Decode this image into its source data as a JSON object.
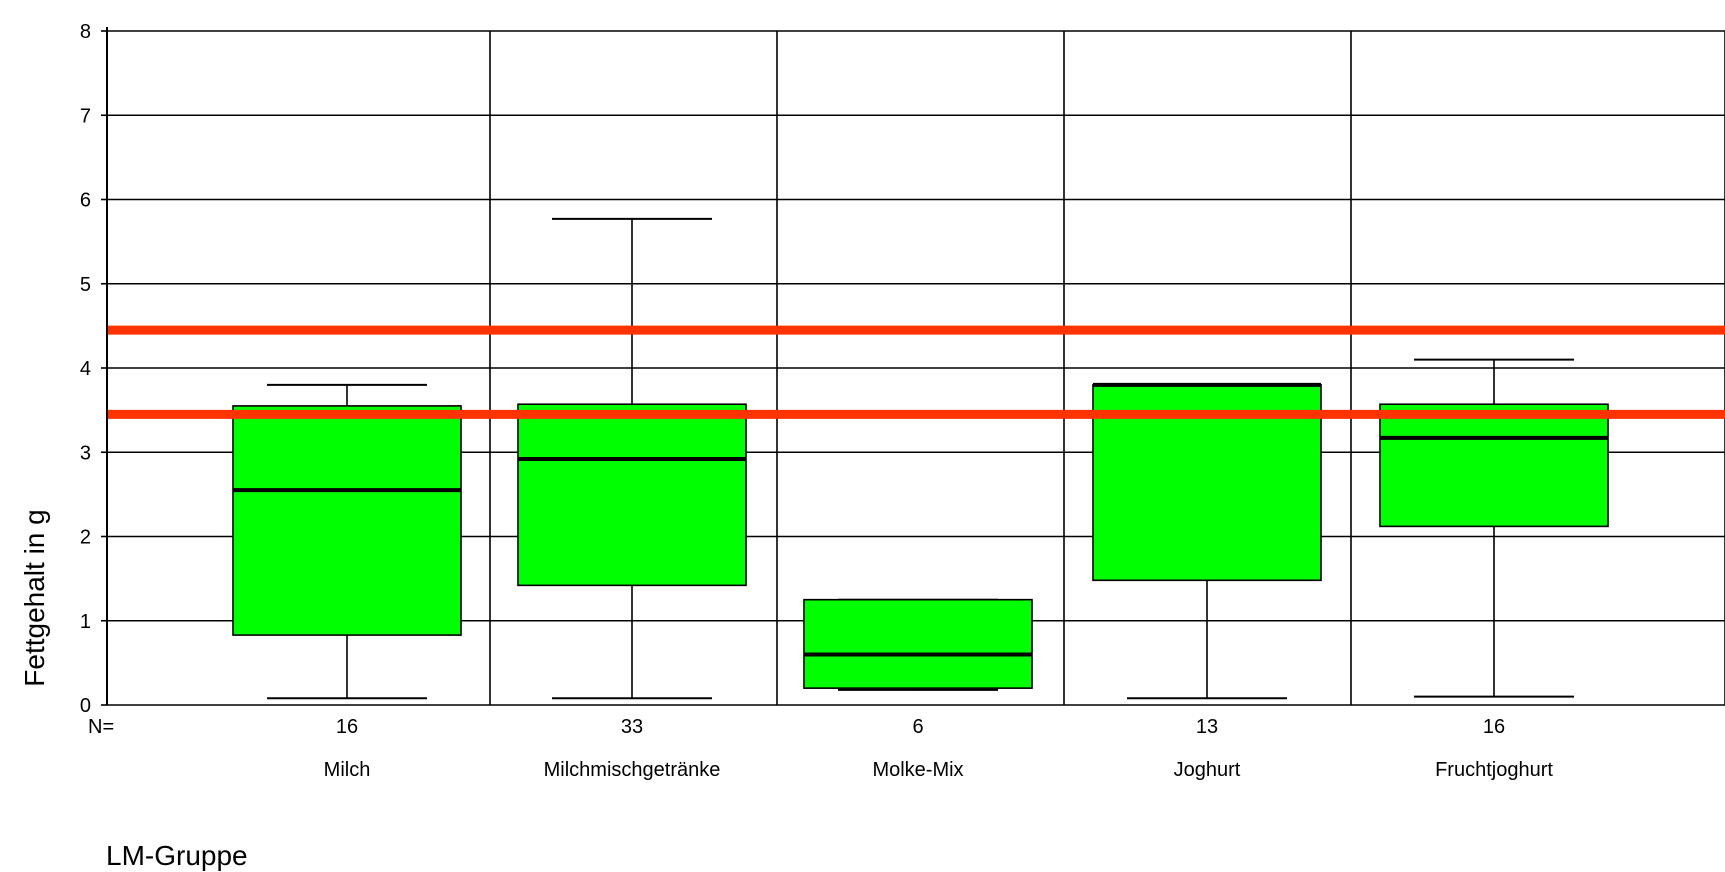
{
  "chart_data": {
    "type": "boxplot",
    "ylabel": "Fettgehalt in g",
    "xlabel": "LM-Gruppe",
    "n_label": "N=",
    "ylim": [
      0,
      8
    ],
    "yticks": [
      0,
      1,
      2,
      3,
      4,
      5,
      6,
      7,
      8
    ],
    "grid": true,
    "box_color": "#00ff00",
    "reference_line_color": "#ff3300",
    "reference_lines": [
      4.45,
      3.45
    ],
    "categories": [
      "Milch",
      "Milchmischgetränke",
      "Molke-Mix",
      "Joghurt",
      "Fruchtjoghurt"
    ],
    "n": [
      "16",
      "33",
      "6",
      "13",
      "16"
    ],
    "boxes": [
      {
        "min": 0.08,
        "q1": 0.83,
        "median": 2.55,
        "q3": 3.55,
        "max": 3.8
      },
      {
        "min": 0.08,
        "q1": 1.42,
        "median": 2.92,
        "q3": 3.57,
        "max": 5.77
      },
      {
        "min": 0.18,
        "q1": 0.2,
        "median": 0.6,
        "q3": 1.25,
        "max": 1.25
      },
      {
        "min": 0.08,
        "q1": 1.48,
        "median": 3.8,
        "q3": 3.8,
        "max": 3.8
      },
      {
        "min": 0.1,
        "q1": 2.12,
        "median": 3.17,
        "q3": 3.57,
        "max": 4.1
      }
    ]
  }
}
